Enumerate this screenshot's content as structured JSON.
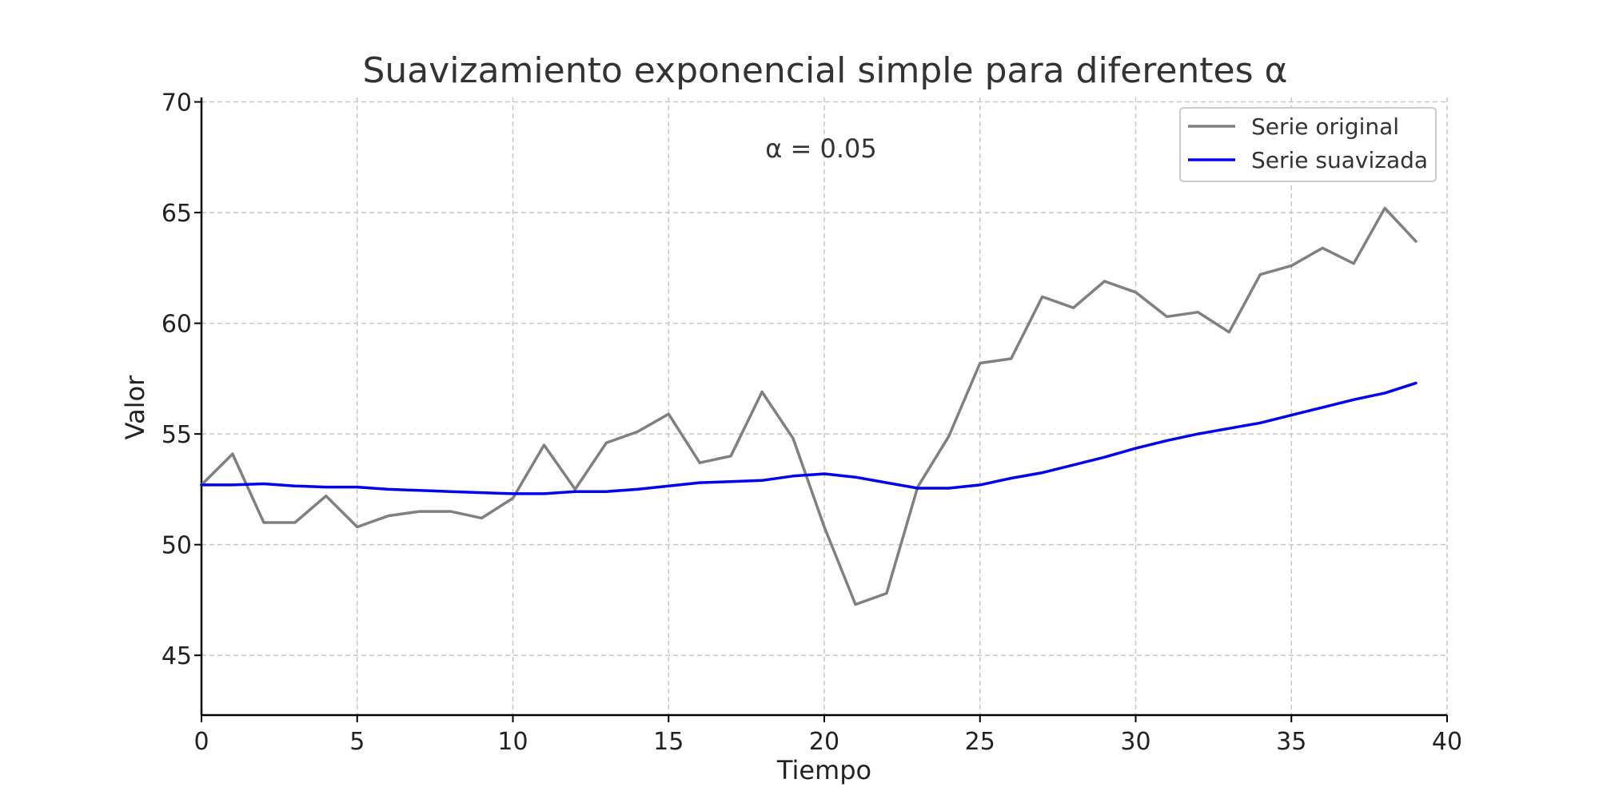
{
  "chart_data": {
    "type": "line",
    "title": "Suavizamiento exponencial simple para diferentes α",
    "xlabel": "Tiempo",
    "ylabel": "Valor",
    "xlim": [
      0,
      40
    ],
    "ylim": [
      42.3,
      70.2
    ],
    "xticks": [
      0,
      5,
      10,
      15,
      20,
      25,
      30,
      35,
      40
    ],
    "yticks": [
      45,
      50,
      55,
      60,
      65,
      70
    ],
    "grid": true,
    "legend_position": "top-right",
    "annotation": "α = 0.05",
    "x": [
      0,
      1,
      2,
      3,
      4,
      5,
      6,
      7,
      8,
      9,
      10,
      11,
      12,
      13,
      14,
      15,
      16,
      17,
      18,
      19,
      20,
      21,
      22,
      23,
      24,
      25,
      26,
      27,
      28,
      29,
      30,
      31,
      32,
      33,
      34,
      35,
      36,
      37,
      38,
      39
    ],
    "series": [
      {
        "name": "Serie original",
        "color": "#808080",
        "values": [
          52.7,
          54.1,
          51.0,
          51.0,
          52.2,
          50.8,
          51.3,
          51.5,
          51.5,
          51.2,
          52.1,
          54.5,
          52.5,
          54.6,
          55.1,
          55.9,
          53.7,
          54.0,
          56.9,
          54.8,
          50.8,
          47.3,
          47.8,
          52.6,
          54.9,
          58.2,
          58.4,
          61.2,
          60.7,
          61.9,
          61.4,
          60.3,
          60.5,
          59.6,
          62.2,
          62.6,
          63.4,
          62.7,
          65.2,
          63.7
        ]
      },
      {
        "name": "Serie suavizada",
        "color": "#0000ee",
        "values": [
          52.7,
          52.7,
          52.75,
          52.65,
          52.6,
          52.6,
          52.5,
          52.45,
          52.4,
          52.35,
          52.3,
          52.3,
          52.4,
          52.4,
          52.5,
          52.65,
          52.8,
          52.85,
          52.9,
          53.1,
          53.2,
          53.05,
          52.8,
          52.55,
          52.55,
          52.7,
          53.0,
          53.25,
          53.6,
          53.95,
          54.35,
          54.7,
          55.0,
          55.25,
          55.5,
          55.85,
          56.2,
          56.55,
          56.85,
          57.3
        ]
      }
    ]
  }
}
